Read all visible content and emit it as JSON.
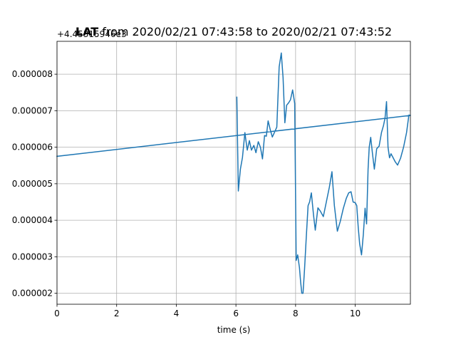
{
  "chart_data": {
    "type": "line",
    "title_bold": "LAT",
    "title_rest": " from 2020/02/21 07:43:58 to 2020/02/21 07:43:52",
    "xlabel": "time (s)",
    "ylabel": "",
    "y_offset_text": "+4.45315946e3",
    "xlim": [
      0,
      11.85
    ],
    "ylim": [
      1.7e-06,
      8.9e-06
    ],
    "xticks": [
      0,
      2,
      4,
      6,
      8,
      10
    ],
    "xtick_labels": [
      "0",
      "2",
      "4",
      "6",
      "8",
      "10"
    ],
    "yticks": [
      2e-06,
      3e-06,
      4e-06,
      5e-06,
      6e-06,
      7e-06,
      8e-06
    ],
    "ytick_labels": [
      "0.000002",
      "0.000003",
      "0.000004",
      "0.000005",
      "0.000006",
      "0.000007",
      "0.000008"
    ],
    "grid": true,
    "colors": {
      "line": "#1f77b4",
      "grid": "#b0b0b0",
      "axes": "#000000"
    },
    "series": [
      {
        "x": [
          0,
          11.85,
          11.8,
          11.72,
          11.62,
          11.52,
          11.42,
          11.34,
          11.26,
          11.2,
          11.15,
          11.1,
          11.05,
          11.0,
          10.95,
          10.88,
          10.8,
          10.72,
          10.64,
          10.58,
          10.52,
          10.47,
          10.43,
          10.38,
          10.33,
          10.27,
          10.21,
          10.15,
          10.1,
          10.05,
          10.0,
          9.93,
          9.86,
          9.78,
          9.7,
          9.6,
          9.5,
          9.4,
          9.3,
          9.22,
          9.13,
          9.03,
          8.93,
          8.83,
          8.75,
          8.66,
          8.6,
          8.53,
          8.47,
          8.42,
          8.36,
          8.3,
          8.25,
          8.21,
          8.17,
          8.13,
          8.07,
          8.02,
          7.97,
          7.9,
          7.83,
          7.77,
          7.7,
          7.64,
          7.58,
          7.52,
          7.45,
          7.37,
          7.29,
          7.22,
          7.15,
          7.08,
          7.02,
          6.96,
          6.89,
          6.82,
          6.75,
          6.67,
          6.6,
          6.52,
          6.45,
          6.38,
          6.3,
          6.22,
          6.15,
          6.08,
          6.03
        ],
        "y": [
          5.75e-06,
          6.87e-06,
          6.88e-06,
          6.4e-06,
          6e-06,
          5.7e-06,
          5.51e-06,
          5.6e-06,
          5.73e-06,
          5.82e-06,
          5.71e-06,
          6e-06,
          7.25e-06,
          6.8e-06,
          6.6e-06,
          6.4e-06,
          6.03e-06,
          5.96e-06,
          5.4e-06,
          5.82e-06,
          6.27e-06,
          6e-06,
          5.4e-06,
          3.9e-06,
          4.33e-06,
          3.6e-06,
          3.05e-06,
          3.35e-06,
          3.8e-06,
          4.4e-06,
          4.48e-06,
          4.5e-06,
          4.78e-06,
          4.75e-06,
          4.6e-06,
          4.32e-06,
          3.97e-06,
          3.7e-06,
          4.4e-06,
          5.33e-06,
          4.9e-06,
          4.5e-06,
          4.1e-06,
          4.25e-06,
          4.34e-06,
          3.73e-06,
          4.15e-06,
          4.75e-06,
          4.5e-06,
          4.4e-06,
          3.55e-06,
          2.65e-06,
          2e-06,
          2e-06,
          2.3e-06,
          2.7e-06,
          3.05e-06,
          2.9e-06,
          7.2e-06,
          7.57e-06,
          7.3e-06,
          7.22e-06,
          7.15e-06,
          6.67e-06,
          7.9e-06,
          8.58e-06,
          8.2e-06,
          6.55e-06,
          6.4e-06,
          6.28e-06,
          6.48e-06,
          6.72e-06,
          6.3e-06,
          6.32e-06,
          5.68e-06,
          6e-06,
          6.15e-06,
          5.85e-06,
          6.05e-06,
          5.92e-06,
          6.18e-06,
          5.92e-06,
          6.4e-06,
          5.72e-06,
          5.4e-06,
          4.8e-06,
          7.37e-06
        ]
      }
    ]
  }
}
